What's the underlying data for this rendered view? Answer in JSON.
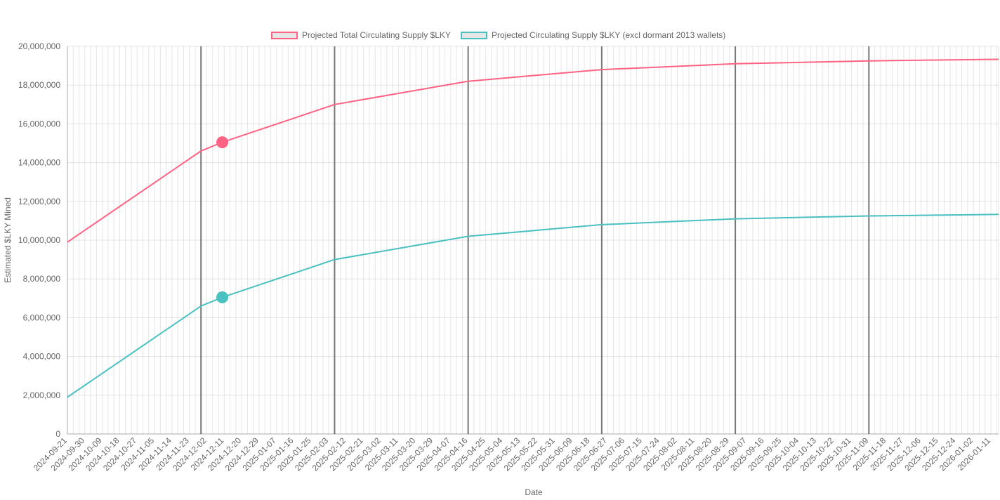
{
  "chart_data": {
    "type": "line",
    "xlabel": "Date",
    "ylabel": "Estimated $LKY Mined",
    "ylim": [
      0,
      20000000
    ],
    "y_ticks": [
      0,
      2000000,
      4000000,
      6000000,
      8000000,
      10000000,
      12000000,
      14000000,
      16000000,
      18000000,
      20000000
    ],
    "y_tick_labels": [
      "0",
      "2,000,000",
      "4,000,000",
      "6,000,000",
      "8,000,000",
      "10,000,000",
      "12,000,000",
      "14,000,000",
      "16,000,000",
      "18,000,000",
      "20,000,000"
    ],
    "x_start": "2024-09-21",
    "x_end": "2026-01-15",
    "x_tick_labels": [
      "2024-09-21",
      "2024-09-30",
      "2024-10-09",
      "2024-10-18",
      "2024-10-27",
      "2024-11-05",
      "2024-11-14",
      "2024-11-23",
      "2024-12-02",
      "2024-12-11",
      "2024-12-20",
      "2024-12-29",
      "2025-01-07",
      "2025-01-16",
      "2025-01-25",
      "2025-02-03",
      "2025-02-12",
      "2025-02-21",
      "2025-03-02",
      "2025-03-11",
      "2025-03-20",
      "2025-03-29",
      "2025-04-07",
      "2025-04-16",
      "2025-04-25",
      "2025-05-04",
      "2025-05-13",
      "2025-05-22",
      "2025-05-31",
      "2025-06-09",
      "2025-06-18",
      "2025-06-27",
      "2025-07-06",
      "2025-07-15",
      "2025-07-24",
      "2025-08-02",
      "2025-08-11",
      "2025-08-20",
      "2025-08-29",
      "2025-09-07",
      "2025-09-16",
      "2025-09-25",
      "2025-10-04",
      "2025-10-13",
      "2025-10-22",
      "2025-10-31",
      "2025-11-09",
      "2025-11-18",
      "2025-11-27",
      "2025-12-06",
      "2025-12-15",
      "2025-12-24",
      "2026-01-02",
      "2026-01-11"
    ],
    "vertical_markers": [
      "2024-11-29",
      "2025-02-06",
      "2025-04-16",
      "2025-06-24",
      "2025-09-01",
      "2025-11-09"
    ],
    "current_point_date": "2024-12-10",
    "series": [
      {
        "name": "Projected Total Circulating Supply $LKY",
        "color": "#ff6384",
        "x": [
          "2024-09-21",
          "2024-11-29",
          "2024-12-10",
          "2025-02-06",
          "2025-04-16",
          "2025-06-24",
          "2025-09-01",
          "2025-11-09",
          "2026-01-15"
        ],
        "values": [
          9900000,
          14600000,
          15050000,
          17000000,
          18200000,
          18800000,
          19100000,
          19250000,
          19330000
        ],
        "current_value": 15050000
      },
      {
        "name": "Projected Circulating Supply $LKY (excl dormant 2013 wallets)",
        "color": "#4bc0c0",
        "x": [
          "2024-09-21",
          "2024-11-29",
          "2024-12-10",
          "2025-02-06",
          "2025-04-16",
          "2025-06-24",
          "2025-09-01",
          "2025-11-09",
          "2026-01-15"
        ],
        "values": [
          1900000,
          6600000,
          7050000,
          9000000,
          10200000,
          10800000,
          11100000,
          11250000,
          11330000
        ],
        "current_value": 7050000
      }
    ]
  }
}
